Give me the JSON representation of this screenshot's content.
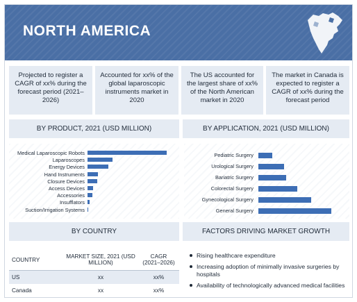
{
  "header": {
    "title": "NORTH AMERICA",
    "map_icon": "north-america-map-icon"
  },
  "kpis": [
    "Projected to register a CAGR of xx% during the forecast period (2021–2026)",
    "Accounted for xx% of the global laparoscopic instruments market in 2020",
    "The US accounted for the largest share of xx% of the North American market in 2020",
    "The market in Canada is expected to register a CAGR of xx% during the forecast period"
  ],
  "sections": {
    "by_product": "BY PRODUCT, 2021 (USD MILLION)",
    "by_application": "BY APPLICATION, 2021 (USD MILLION)",
    "by_country": "BY COUNTRY",
    "factors": "FACTORS DRIVING MARKET GROWTH"
  },
  "colors": {
    "header": "#4a6fa5",
    "panel": "#e5ebf3",
    "bar": "#3d6eb5"
  },
  "chart_data": [
    {
      "type": "bar",
      "orientation": "horizontal",
      "title": "BY PRODUCT, 2021 (USD MILLION)",
      "categories": [
        "Medical Laparoscopic Robots",
        "Laparoscopes",
        "Energy Devices",
        "Hand Instruments",
        "Closure Devices",
        "Access Devices",
        "Accessories",
        "Insufflators",
        "Suction/Irrigation Systems"
      ],
      "values": [
        100,
        32,
        26,
        13,
        12,
        7,
        6,
        3,
        1
      ],
      "axis_labels_shown": false
    },
    {
      "type": "bar",
      "orientation": "horizontal",
      "title": "BY APPLICATION, 2021 (USD MILLION)",
      "categories": [
        "Pediatric Surgery",
        "Urological Surgery",
        "Bariatric Surgery",
        "Colorectal Surgery",
        "Gynecological Surgery",
        "General Surgery"
      ],
      "values": [
        19,
        35,
        38,
        53,
        72,
        100
      ],
      "axis_labels_shown": false
    }
  ],
  "country_table": {
    "headers": [
      "COUNTRY",
      "MARKET SIZE, 2021 (USD MILLION)",
      "CAGR (2021–2026)"
    ],
    "rows": [
      [
        "US",
        "xx",
        "xx%"
      ],
      [
        "Canada",
        "xx",
        "xx%"
      ]
    ]
  },
  "factors": [
    "Rising healthcare expenditure",
    "Increasing adoption of minimally invasive surgeries by hospitals",
    "Availability of technologically advanced medical facilities"
  ]
}
